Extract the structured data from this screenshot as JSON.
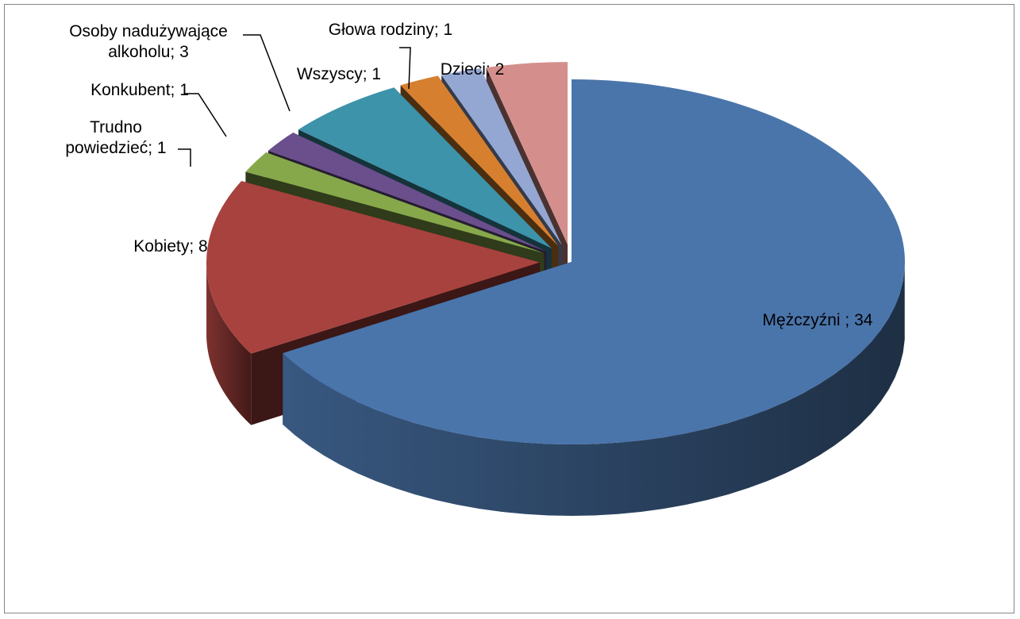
{
  "chart_data": {
    "type": "pie",
    "style": "3d-exploded",
    "categories": [
      "Mężczyźni",
      "Kobiety",
      "Trudno powiedzieć",
      "Konkubent",
      "Osoby nadużywające alkoholu",
      "Wszyscy",
      "Głowa rodziny",
      "Dzieci"
    ],
    "values": [
      34,
      8,
      1,
      1,
      3,
      1,
      1,
      2
    ],
    "colors": [
      "#4a75ab",
      "#a8423e",
      "#86a84a",
      "#6a4f8c",
      "#3c93aa",
      "#d6802f",
      "#94a7d3",
      "#d48f8c"
    ],
    "labels": [
      {
        "lines": [
          "Mężczyźni ; 34"
        ]
      },
      {
        "lines": [
          "Kobiety; 8"
        ]
      },
      {
        "lines": [
          "Trudno",
          "powiedzieć; 1"
        ]
      },
      {
        "lines": [
          "Konkubent; 1"
        ]
      },
      {
        "lines": [
          "Osoby nadużywające",
          "alkoholu; 3"
        ]
      },
      {
        "lines": [
          "Wszyscy; 1"
        ]
      },
      {
        "lines": [
          "Głowa rodziny; 1"
        ]
      },
      {
        "lines": [
          "Dzieci; 2"
        ]
      }
    ],
    "title": "",
    "legend": "none"
  }
}
